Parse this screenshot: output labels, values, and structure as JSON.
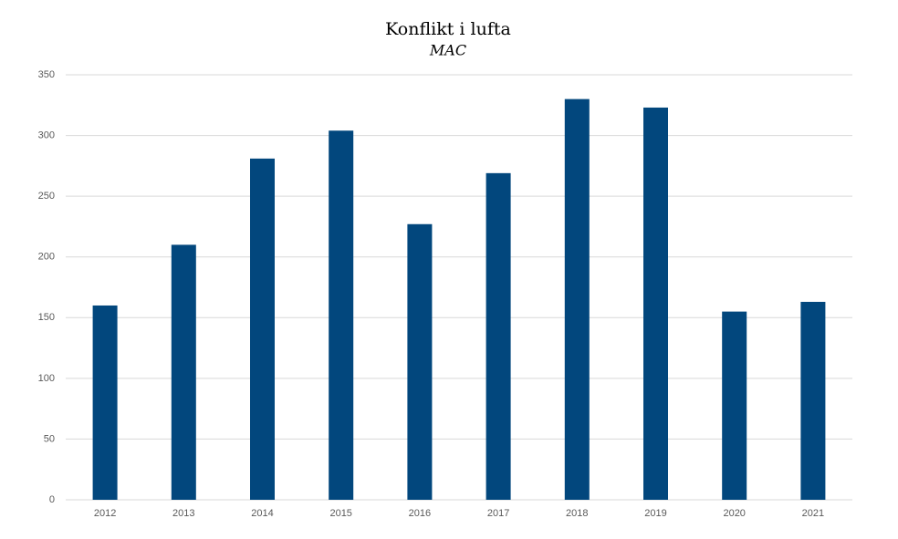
{
  "chart_data": {
    "type": "bar",
    "title": "Konflikt i lufta",
    "subtitle": "MAC",
    "categories": [
      "2012",
      "2013",
      "2014",
      "2015",
      "2016",
      "2017",
      "2018",
      "2019",
      "2020",
      "2021"
    ],
    "values": [
      160,
      210,
      281,
      304,
      227,
      269,
      330,
      323,
      155,
      163
    ],
    "color": "#02477d",
    "ylim": [
      0,
      350
    ],
    "yticks": [
      0,
      50,
      100,
      150,
      200,
      250,
      300,
      350
    ],
    "grid": true
  }
}
